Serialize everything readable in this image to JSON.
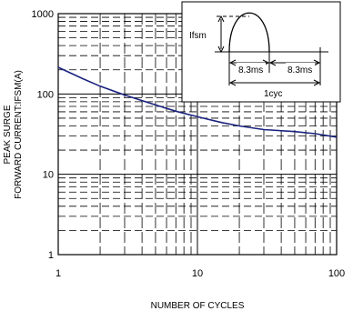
{
  "chart_data": {
    "type": "line",
    "x_scale": "log",
    "y_scale": "log",
    "xlim": [
      1,
      100
    ],
    "ylim": [
      1,
      1000
    ],
    "x_ticks": [
      "1",
      "10",
      "100"
    ],
    "y_ticks": [
      "1",
      "10",
      "100",
      "1000"
    ],
    "xlabel": "NUMBER OF CYCLES",
    "ylabel_line1": "PEAK SURGE",
    "ylabel_line2": "FORWARD CURRENT:IFSM(A)",
    "grid": true,
    "colors": {
      "curve": "#1a237e",
      "grid": "#000000"
    },
    "series": [
      {
        "x": [
          1,
          1.5,
          2,
          3,
          5,
          7,
          10,
          15,
          20,
          30,
          50,
          70,
          100
        ],
        "y": [
          215,
          155,
          125,
          97,
          73,
          61,
          52,
          44,
          40,
          36,
          34,
          32,
          29
        ]
      }
    ],
    "inset": {
      "ifsm_label": "Ifsm",
      "interval_left": "8.3ms",
      "interval_right": "8.3ms",
      "cycle_label": "1cyc"
    }
  }
}
